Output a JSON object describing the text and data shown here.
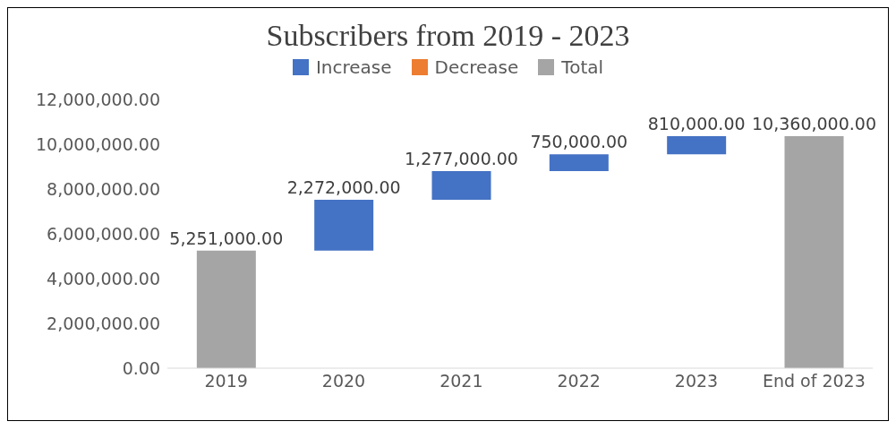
{
  "chart_data": {
    "type": "bar",
    "title": "Subscribers from 2019 - 2023",
    "categories": [
      "2019",
      "2020",
      "2021",
      "2022",
      "2023",
      "End of 2023"
    ],
    "series": [
      {
        "name": "Increase",
        "color": "#4472c4",
        "values": [
          null,
          2272000,
          1277000,
          750000,
          810000,
          null
        ],
        "base": [
          null,
          5251000,
          7523000,
          8800000,
          9550000,
          null
        ],
        "value_labels": [
          null,
          "2,272,000.00",
          "1,277,000.00",
          "750,000.00",
          "810,000.00",
          null
        ]
      },
      {
        "name": "Decrease",
        "color": "#ed7d31",
        "values": [
          null,
          null,
          null,
          null,
          null,
          null
        ]
      },
      {
        "name": "Total",
        "color": "#a5a5a5",
        "values": [
          5251000,
          null,
          null,
          null,
          null,
          10360000
        ],
        "value_labels": [
          "5,251,000.00",
          null,
          null,
          null,
          null,
          "10,360,000.00"
        ]
      }
    ],
    "ylim": [
      0,
      12000000
    ],
    "yticks": [
      {
        "value": 0,
        "label": "0.00"
      },
      {
        "value": 2000000,
        "label": "2,000,000.00"
      },
      {
        "value": 4000000,
        "label": "4,000,000.00"
      },
      {
        "value": 6000000,
        "label": "6,000,000.00"
      },
      {
        "value": 8000000,
        "label": "8,000,000.00"
      },
      {
        "value": 10000000,
        "label": "10,000,000.00"
      },
      {
        "value": 12000000,
        "label": "12,000,000.00"
      }
    ],
    "grid": false,
    "legend": "top"
  }
}
